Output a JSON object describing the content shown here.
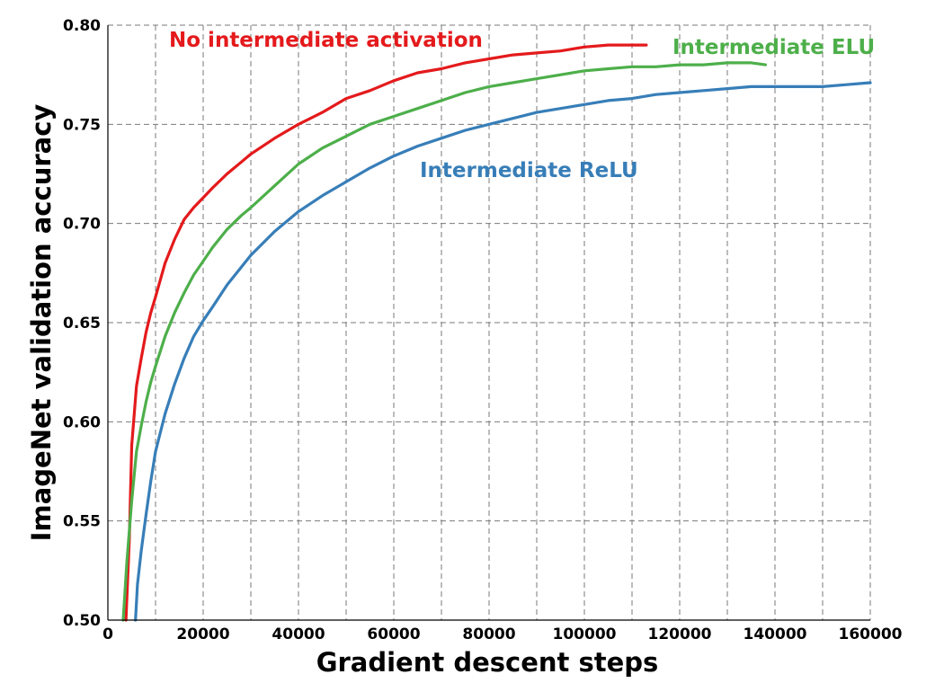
{
  "chart_data": {
    "type": "line",
    "xlabel": "Gradient descent steps",
    "ylabel": "ImageNet validation accuracy",
    "xlim": [
      0,
      160000
    ],
    "ylim": [
      0.5,
      0.8
    ],
    "xticks": [
      0,
      20000,
      40000,
      60000,
      80000,
      100000,
      120000,
      140000,
      160000
    ],
    "xtick_labels": [
      "0",
      "20000",
      "40000",
      "60000",
      "80000",
      "100000",
      "120000",
      "140000",
      "160000"
    ],
    "yticks": [
      0.5,
      0.55,
      0.6,
      0.65,
      0.7,
      0.75,
      0.8
    ],
    "ytick_labels": [
      "0.50",
      "0.55",
      "0.60",
      "0.65",
      "0.70",
      "0.75",
      "0.80"
    ],
    "grid": true,
    "grid_x_minor_step": 10000,
    "legend": "inline labels",
    "series": [
      {
        "name": "No intermediate activation",
        "color": "#e41a1c",
        "x": [
          3800,
          4500,
          5000,
          6000,
          7000,
          8000,
          9000,
          10000,
          12000,
          14000,
          16000,
          18000,
          20000,
          22000,
          25000,
          28000,
          30000,
          35000,
          40000,
          45000,
          50000,
          55000,
          60000,
          65000,
          70000,
          75000,
          80000,
          85000,
          90000,
          95000,
          100000,
          105000,
          110000,
          113000
        ],
        "y": [
          0.5,
          0.54,
          0.588,
          0.618,
          0.632,
          0.645,
          0.655,
          0.663,
          0.68,
          0.692,
          0.702,
          0.708,
          0.713,
          0.718,
          0.725,
          0.731,
          0.735,
          0.743,
          0.75,
          0.756,
          0.763,
          0.767,
          0.772,
          0.776,
          0.778,
          0.781,
          0.783,
          0.785,
          0.786,
          0.787,
          0.789,
          0.79,
          0.79,
          0.79
        ]
      },
      {
        "name": "Intermediate ELU",
        "color": "#4daf4a",
        "x": [
          3200,
          4000,
          5000,
          6000,
          7000,
          8000,
          9000,
          10000,
          12000,
          14000,
          16000,
          18000,
          20000,
          22000,
          25000,
          28000,
          30000,
          35000,
          40000,
          45000,
          50000,
          55000,
          60000,
          65000,
          70000,
          75000,
          80000,
          85000,
          90000,
          95000,
          100000,
          105000,
          110000,
          115000,
          120000,
          125000,
          130000,
          135000,
          138000
        ],
        "y": [
          0.5,
          0.53,
          0.56,
          0.585,
          0.598,
          0.61,
          0.62,
          0.628,
          0.643,
          0.655,
          0.665,
          0.674,
          0.681,
          0.688,
          0.697,
          0.704,
          0.708,
          0.719,
          0.73,
          0.738,
          0.744,
          0.75,
          0.754,
          0.758,
          0.762,
          0.766,
          0.769,
          0.771,
          0.773,
          0.775,
          0.777,
          0.778,
          0.779,
          0.779,
          0.78,
          0.78,
          0.781,
          0.781,
          0.78
        ]
      },
      {
        "name": "Intermediate ReLU",
        "color": "#377eb8",
        "x": [
          5800,
          6200,
          7000,
          8000,
          9000,
          10000,
          12000,
          14000,
          16000,
          18000,
          20000,
          22000,
          25000,
          28000,
          30000,
          35000,
          40000,
          45000,
          50000,
          55000,
          60000,
          65000,
          70000,
          75000,
          80000,
          85000,
          90000,
          95000,
          100000,
          105000,
          110000,
          115000,
          120000,
          125000,
          130000,
          135000,
          140000,
          145000,
          150000,
          155000,
          160000
        ],
        "y": [
          0.5,
          0.518,
          0.535,
          0.553,
          0.57,
          0.585,
          0.604,
          0.619,
          0.632,
          0.643,
          0.651,
          0.658,
          0.669,
          0.678,
          0.684,
          0.696,
          0.706,
          0.714,
          0.721,
          0.728,
          0.734,
          0.739,
          0.743,
          0.747,
          0.75,
          0.753,
          0.756,
          0.758,
          0.76,
          0.762,
          0.763,
          0.765,
          0.766,
          0.767,
          0.768,
          0.769,
          0.769,
          0.769,
          0.769,
          0.77,
          0.771
        ]
      }
    ],
    "annotations": [
      {
        "text": "No intermediate activation",
        "color": "#e41a1c"
      },
      {
        "text": "Intermediate ELU",
        "color": "#4daf4a"
      },
      {
        "text": "Intermediate ReLU",
        "color": "#377eb8"
      }
    ]
  }
}
